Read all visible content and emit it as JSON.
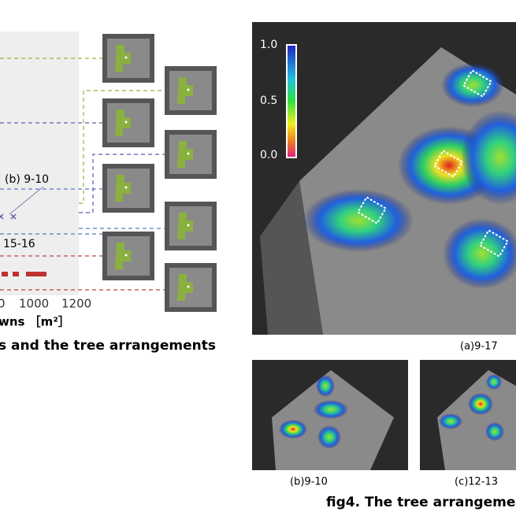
{
  "left_figure": {
    "annotations": [
      "(b) 9-10",
      "15-16"
    ],
    "x_tick_labels": [
      "0",
      "1000",
      "1200"
    ],
    "x_axis_label": "wns ［m²］",
    "caption": "s and the tree arrangements"
  },
  "right_figure": {
    "colorbar_labels": [
      "1.0",
      "0.5",
      "0.0"
    ],
    "panels": [
      "(a)9-17",
      "(b)9-10",
      "(c)12-13"
    ],
    "caption": "fig4.  The tree arrangeme"
  }
}
